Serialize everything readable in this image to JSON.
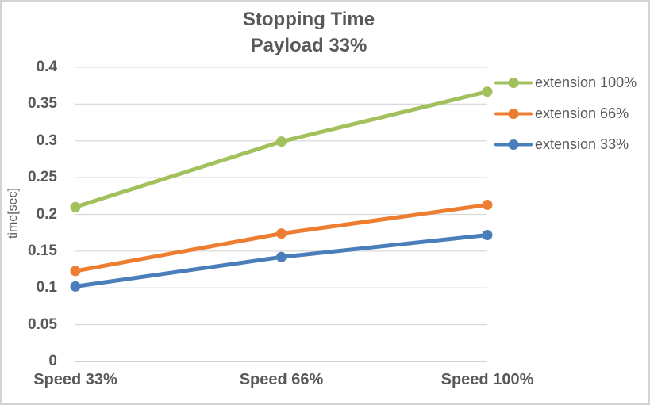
{
  "chart_data": {
    "type": "line",
    "title": "Stopping Time",
    "subtitle": "Payload 33%",
    "ylabel": "time[sec]",
    "xlabel": "",
    "categories": [
      "Speed 33%",
      "Speed 66%",
      "Speed 100%"
    ],
    "series": [
      {
        "name": "extension 100%",
        "color": "#A2C15C",
        "values": [
          0.21,
          0.299,
          0.367
        ]
      },
      {
        "name": "extension 66%",
        "color": "#ED7D31",
        "values": [
          0.123,
          0.174,
          0.213
        ]
      },
      {
        "name": "extension 33%",
        "color": "#4A7EBB",
        "values": [
          0.102,
          0.142,
          0.172
        ]
      }
    ],
    "ylim": [
      0,
      0.4
    ],
    "ytick_step": 0.05,
    "yticks": [
      "0",
      "0.05",
      "0.1",
      "0.15",
      "0.2",
      "0.25",
      "0.3",
      "0.35",
      "0.4"
    ],
    "grid": true,
    "marker": "circle",
    "legend_position": "right"
  },
  "colors": {
    "text": "#595959",
    "gridline": "#D9D9D9",
    "axis_line": "#C3C3C3",
    "chart_border": "#D3D3D3",
    "background": "#FFFFFF"
  }
}
